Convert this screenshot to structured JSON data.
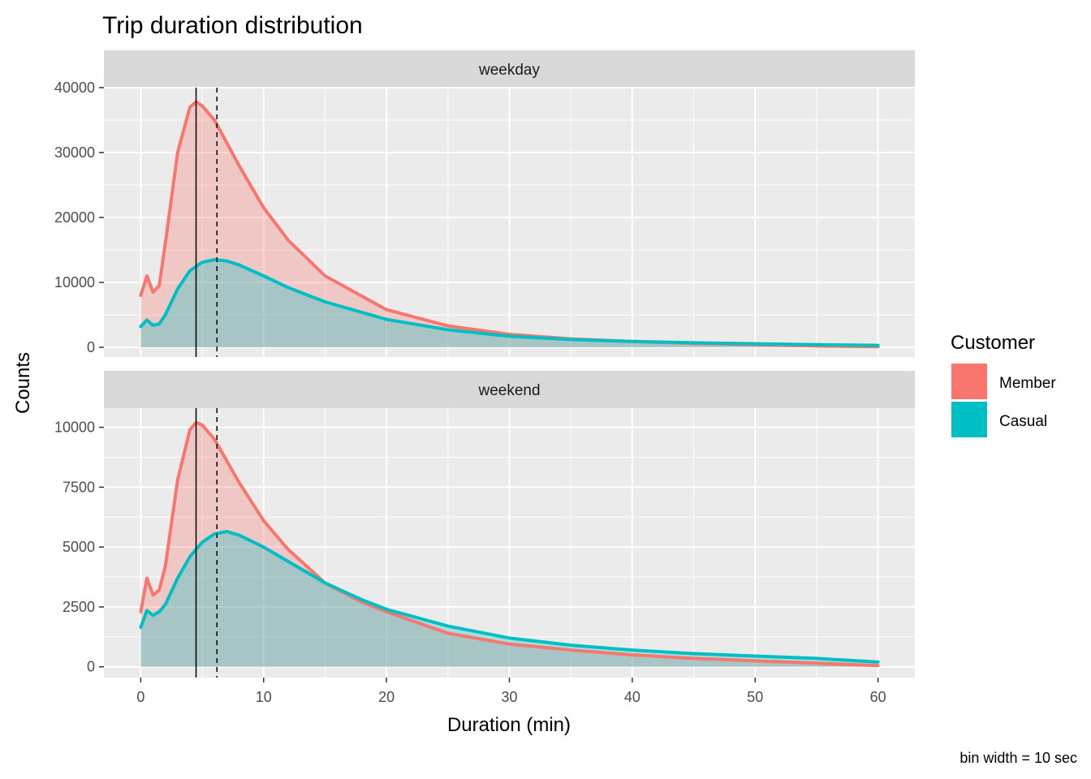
{
  "chart_data": {
    "type": "area",
    "title": "Trip duration distribution",
    "xlabel": "Duration (min)",
    "ylabel": "Counts",
    "caption": "bin width = 10 sec",
    "legend": {
      "title": "Customer",
      "position": "right"
    },
    "grid": true,
    "x_ticks": [
      0,
      10,
      20,
      30,
      40,
      50,
      60
    ],
    "xlim": [
      -3,
      63
    ],
    "series_colors": {
      "Member": "#F8766D",
      "Casual": "#00BFC4"
    },
    "reference_lines": {
      "solid_x": 4.5,
      "dashed_x": 6.2
    },
    "panels": [
      {
        "strip": "weekday",
        "ylim": [
          -1500,
          40000
        ],
        "y_ticks": [
          0,
          10000,
          20000,
          30000,
          40000
        ],
        "series": [
          {
            "name": "Member",
            "x": [
              0,
              0.5,
              1,
              1.5,
              2,
              3,
              4,
              4.5,
              5,
              6,
              7,
              8,
              10,
              12,
              15,
              20,
              25,
              30,
              35,
              40,
              45,
              50,
              55,
              60
            ],
            "values": [
              8000,
              11000,
              8500,
              9500,
              16000,
              30000,
              37000,
              37800,
              37200,
              35000,
              31500,
              28000,
              21500,
              16500,
              11000,
              5800,
              3300,
              2000,
              1300,
              900,
              600,
              400,
              200,
              100
            ]
          },
          {
            "name": "Casual",
            "x": [
              0,
              0.5,
              1,
              1.5,
              2,
              3,
              4,
              5,
              6,
              7,
              8,
              10,
              12,
              15,
              20,
              25,
              30,
              35,
              40,
              45,
              50,
              55,
              60
            ],
            "values": [
              3200,
              4200,
              3400,
              3600,
              5000,
              9000,
              11800,
              13100,
              13500,
              13300,
              12700,
              11000,
              9200,
              7000,
              4300,
              2700,
              1700,
              1200,
              900,
              700,
              550,
              400,
              300
            ]
          }
        ]
      },
      {
        "strip": "weekend",
        "ylim": [
          -450,
          10800
        ],
        "y_ticks": [
          0,
          2500,
          5000,
          7500,
          10000
        ],
        "series": [
          {
            "name": "Member",
            "x": [
              0,
              0.5,
              1,
              1.5,
              2,
              3,
              4,
              4.5,
              5,
              6,
              7,
              8,
              10,
              12,
              15,
              18,
              20,
              25,
              30,
              35,
              40,
              45,
              50,
              55,
              60
            ],
            "values": [
              2300,
              3700,
              3000,
              3200,
              4200,
              7800,
              9900,
              10200,
              10100,
              9500,
              8600,
              7700,
              6100,
              4900,
              3500,
              2700,
              2300,
              1400,
              950,
              700,
              500,
              350,
              250,
              150,
              50
            ]
          },
          {
            "name": "Casual",
            "x": [
              0,
              0.5,
              1,
              1.5,
              2,
              3,
              4,
              5,
              6,
              7,
              8,
              10,
              12,
              15,
              18,
              20,
              25,
              30,
              35,
              40,
              45,
              50,
              55,
              60
            ],
            "values": [
              1650,
              2350,
              2150,
              2300,
              2600,
              3700,
              4600,
              5200,
              5550,
              5650,
              5500,
              5000,
              4400,
              3500,
              2800,
              2400,
              1700,
              1200,
              900,
              700,
              550,
              450,
              350,
              200
            ]
          }
        ]
      }
    ]
  }
}
